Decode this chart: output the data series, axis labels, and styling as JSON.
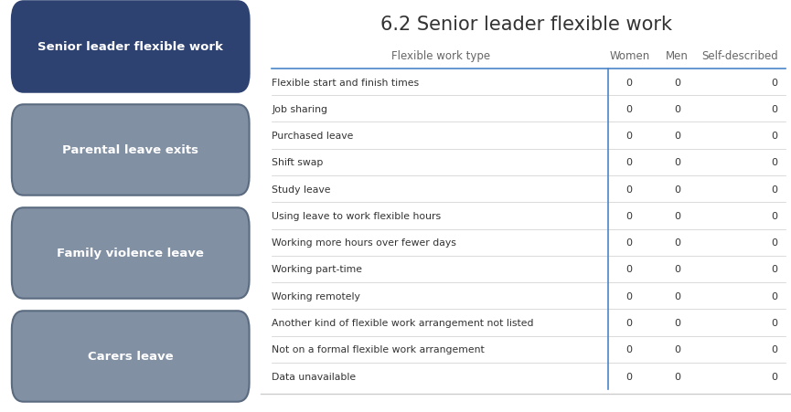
{
  "title": "6.2 Senior leader flexible work",
  "title_fontsize": 15,
  "background_color": "#ffffff",
  "buttons": [
    {
      "label": "Senior leader flexible work",
      "bg": "#2e4272",
      "text_color": "#ffffff",
      "active": true
    },
    {
      "label": "Parental leave exits",
      "bg": "#8290a4",
      "text_color": "#ffffff",
      "active": false
    },
    {
      "label": "Family violence leave",
      "bg": "#8290a4",
      "text_color": "#ffffff",
      "active": false
    },
    {
      "label": "Carers leave",
      "bg": "#8290a4",
      "text_color": "#ffffff",
      "active": false
    }
  ],
  "col_headers": [
    "Flexible work type",
    "Women",
    "Men",
    "Self-described"
  ],
  "rows": [
    "Flexible start and finish times",
    "Job sharing",
    "Purchased leave",
    "Shift swap",
    "Study leave",
    "Using leave to work flexible hours",
    "Working more hours over fewer days",
    "Working part-time",
    "Working remotely",
    "Another kind of flexible work arrangement not listed",
    "Not on a formal flexible work arrangement",
    "Data unavailable"
  ],
  "values": [
    [
      0,
      0,
      0
    ],
    [
      0,
      0,
      0
    ],
    [
      0,
      0,
      0
    ],
    [
      0,
      0,
      0
    ],
    [
      0,
      0,
      0
    ],
    [
      0,
      0,
      0
    ],
    [
      0,
      0,
      0
    ],
    [
      0,
      0,
      0
    ],
    [
      0,
      0,
      0
    ],
    [
      0,
      0,
      0
    ],
    [
      0,
      0,
      0
    ],
    [
      0,
      0,
      0
    ]
  ],
  "header_line_color": "#4a86c8",
  "row_line_color": "#cccccc",
  "header_text_color": "#666666",
  "row_text_color": "#333333",
  "value_text_color": "#333333",
  "divider_line_color": "#4a86c8",
  "footer_line_color": "#cccccc"
}
